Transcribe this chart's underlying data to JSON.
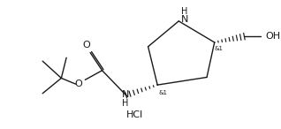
{
  "background": "#ffffff",
  "line_color": "#1a1a1a",
  "text_color": "#1a1a1a",
  "line_width": 1.0,
  "font_size": 7.5,
  "figsize": [
    3.18,
    1.46
  ],
  "dpi": 100,
  "labels": {
    "N_ring": "N",
    "H_ring": "H",
    "OH": "OH",
    "ref1": "&1",
    "N_boc": "N",
    "H_boc": "H",
    "O_carbonyl": "O",
    "O_ester": "O",
    "HCl": "HCl"
  }
}
